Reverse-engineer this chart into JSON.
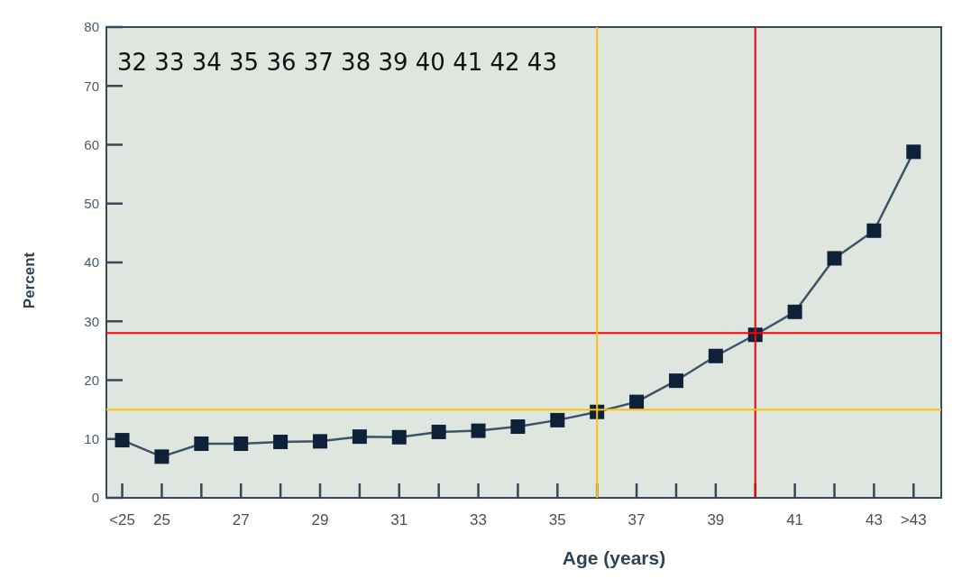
{
  "chart_data": {
    "type": "line",
    "xlabel": "Age (years)",
    "ylabel": "Percent",
    "x": [
      24,
      25,
      26,
      27,
      28,
      29,
      30,
      31,
      32,
      33,
      34,
      35,
      36,
      37,
      38,
      39,
      40,
      41,
      42,
      43,
      44
    ],
    "series": [
      {
        "color": "#0d2238",
        "values": [
          9.8,
          7,
          9.2,
          9.2,
          9.5,
          9.6,
          10.4,
          10.3,
          11.2,
          11.4,
          12.1,
          13.2,
          14.6,
          16.3,
          19.9,
          24.1,
          27.7,
          31.6,
          40.7,
          45.4,
          58.8
        ]
      }
    ],
    "xlim": [
      23.6,
      44.7
    ],
    "xticks": [
      {
        "value": 24,
        "label": "<25"
      },
      25,
      {
        "value": 26,
        "label": null
      },
      27,
      {
        "value": 28,
        "label": null
      },
      29,
      {
        "value": 30,
        "label": null
      },
      31,
      {
        "value": 32,
        "label": null
      },
      33,
      {
        "value": 34,
        "label": null
      },
      35,
      {
        "value": 36,
        "label": null
      },
      37,
      {
        "value": 38,
        "label": null
      },
      39,
      {
        "value": 40,
        "label": null
      },
      41,
      {
        "value": 42,
        "label": null
      },
      43,
      {
        "value": 44,
        "label": ">43"
      }
    ],
    "ylim": [
      0,
      80
    ],
    "yticks": [
      0,
      10,
      20,
      30,
      40,
      50,
      60,
      70,
      80
    ],
    "marker": "square",
    "grid": false,
    "ref_lines": [
      {
        "axis": "y",
        "value": 28,
        "color": "#ff0000"
      },
      {
        "axis": "x",
        "value": 40,
        "color": "#ff0000"
      },
      {
        "axis": "y",
        "value": 15,
        "color": "#ffc000"
      },
      {
        "axis": "x",
        "value": 36,
        "color": "#ffc000"
      }
    ],
    "annotations": [
      "32 33 34 35 36 37 38 39 40 41 42 43"
    ]
  }
}
